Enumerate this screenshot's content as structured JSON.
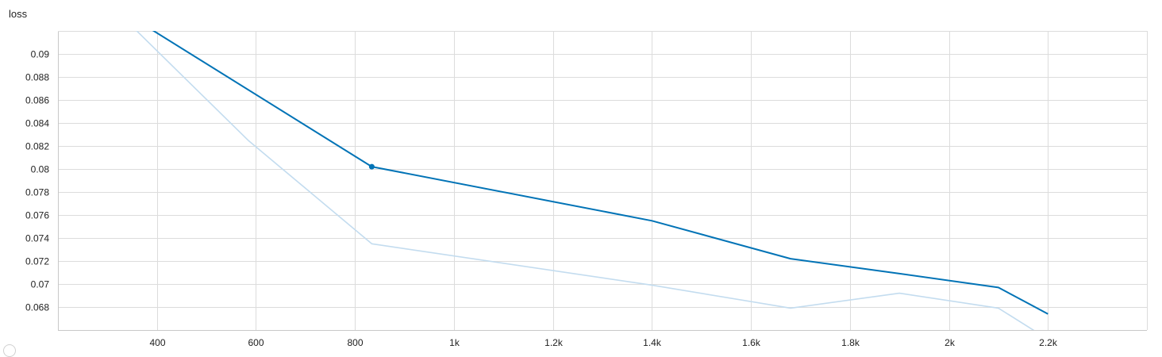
{
  "chart_data": {
    "type": "line",
    "title": "loss",
    "xlabel": "",
    "ylabel": "",
    "xlim": [
      200,
      2400
    ],
    "ylim": [
      0.066,
      0.092
    ],
    "x_ticks": [
      400,
      600,
      800,
      1000,
      1200,
      1400,
      1600,
      1800,
      2000,
      2200
    ],
    "x_tick_labels": [
      "400",
      "600",
      "800",
      "1k",
      "1.2k",
      "1.4k",
      "1.6k",
      "1.8k",
      "2k",
      "2.2k"
    ],
    "y_ticks": [
      0.068,
      0.07,
      0.072,
      0.074,
      0.076,
      0.078,
      0.08,
      0.082,
      0.084,
      0.086,
      0.088,
      0.09
    ],
    "y_tick_labels": [
      "0.068",
      "0.07",
      "0.072",
      "0.074",
      "0.076",
      "0.078",
      "0.08",
      "0.082",
      "0.084",
      "0.086",
      "0.088",
      "0.09"
    ],
    "grid": true,
    "series": [
      {
        "role": "raw",
        "color": "#c3dcef",
        "x": [
          300,
          584,
          834,
          1400,
          1680,
          1900,
          2100,
          2300
        ],
        "y": [
          0.0945,
          0.0825,
          0.0735,
          0.0699,
          0.0679,
          0.0692,
          0.0679,
          0.0625
        ]
      },
      {
        "role": "smoothed",
        "color": "#0173b6",
        "x": [
          300,
          834,
          1400,
          1680,
          1900,
          2100,
          2200
        ],
        "y": [
          0.0945,
          0.0802,
          0.0755,
          0.0722,
          0.0709,
          0.0697,
          0.0674
        ]
      }
    ],
    "highlight_point": {
      "x": 834,
      "y": 0.0802,
      "color": "#0173b6"
    }
  }
}
